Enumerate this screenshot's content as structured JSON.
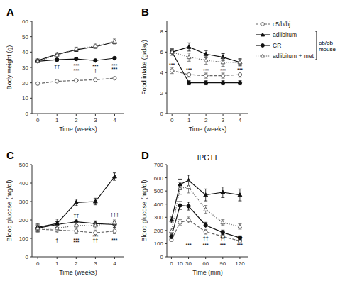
{
  "chart_data": [
    {
      "type": "line",
      "title": "A",
      "xlabel": "Time (weeks)",
      "ylabel": "Body weight (g)",
      "x": [
        0,
        1,
        2,
        3,
        4
      ],
      "xlim": [
        -0.3,
        4.5
      ],
      "ylim": [
        0,
        60
      ],
      "xticks": [
        0,
        1,
        2,
        3,
        4
      ],
      "yticks": [
        0,
        10,
        20,
        30,
        40,
        50,
        60
      ],
      "grid": false,
      "series": [
        {
          "name": "c5/b/bj",
          "color": "#666666",
          "marker": "circle-open",
          "line_style": "dashed",
          "values": [
            19.5,
            21.0,
            21.5,
            22.0,
            23.0
          ],
          "errors": [
            0.5,
            0.5,
            0.5,
            0.5,
            0.5
          ]
        },
        {
          "name": "adlibitum",
          "color": "#111111",
          "marker": "triangle",
          "line_style": "solid",
          "values": [
            34.5,
            38.5,
            41.5,
            43.5,
            46.5
          ],
          "errors": [
            1.0,
            1.0,
            1.0,
            1.0,
            1.2
          ]
        },
        {
          "name": "CR",
          "color": "#111111",
          "marker": "circle",
          "line_style": "solid",
          "values": [
            34.0,
            35.0,
            35.5,
            34.5,
            36.0
          ],
          "errors": [
            1.0,
            0.8,
            0.8,
            0.8,
            1.0
          ]
        },
        {
          "name": "adlibitum + met",
          "color": "#666666",
          "marker": "triangle-open",
          "line_style": "dotted",
          "values": [
            34.0,
            38.0,
            42.0,
            44.0,
            47.0
          ],
          "errors": [
            1.0,
            1.2,
            1.2,
            1.2,
            1.5
          ]
        }
      ],
      "annotations": [
        {
          "text": "††",
          "x": 1,
          "y": 29.5
        },
        {
          "text": "***",
          "x": 2,
          "y": 27.0
        },
        {
          "text": "***",
          "x": 2,
          "y": 29.8
        },
        {
          "text": "†",
          "x": 3,
          "y": 27.0
        },
        {
          "text": "***",
          "x": 3,
          "y": 29.5
        },
        {
          "text": "***",
          "x": 4,
          "y": 27.5
        },
        {
          "text": "***",
          "x": 4,
          "y": 29.8
        }
      ]
    },
    {
      "type": "line",
      "title": "B",
      "xlabel": "Time (weeks)",
      "ylabel": "Food intake (g/day)",
      "x": [
        0,
        1,
        2,
        3,
        4
      ],
      "xlim": [
        -0.3,
        4.5
      ],
      "ylim": [
        0,
        9
      ],
      "xticks": [
        0,
        1,
        2,
        3,
        4
      ],
      "yticks": [
        0,
        2,
        4,
        6,
        8
      ],
      "grid": false,
      "legend": "right",
      "legend_note": "ob/ob\nmouse",
      "series": [
        {
          "name": "c5/b/bj",
          "color": "#666666",
          "marker": "circle-open",
          "line_style": "dashed",
          "values": [
            4.2,
            3.8,
            3.7,
            3.7,
            3.8
          ],
          "errors": [
            0.3,
            0.25,
            0.25,
            0.25,
            0.25
          ]
        },
        {
          "name": "adlibitum",
          "color": "#111111",
          "marker": "triangle",
          "line_style": "solid",
          "values": [
            6.0,
            6.5,
            5.8,
            5.5,
            5.0
          ],
          "errors": [
            0.3,
            0.4,
            0.35,
            0.35,
            0.35
          ]
        },
        {
          "name": "CR",
          "color": "#111111",
          "marker": "circle",
          "line_style": "solid",
          "values": [
            6.0,
            3.0,
            3.0,
            3.0,
            3.0
          ],
          "errors": [
            0.3,
            0.2,
            0.2,
            0.2,
            0.2
          ]
        },
        {
          "name": "adlibitum + met",
          "color": "#666666",
          "marker": "triangle-open",
          "line_style": "dotted",
          "values": [
            6.0,
            5.5,
            5.2,
            5.0,
            5.0
          ],
          "errors": [
            0.3,
            0.4,
            0.4,
            0.4,
            0.3
          ]
        }
      ],
      "annotations": [
        {
          "text": "***",
          "x": 0,
          "y": 4.55
        },
        {
          "text": "***",
          "x": 1,
          "y": 4.1
        },
        {
          "text": "***",
          "x": 2,
          "y": 4.0
        },
        {
          "text": "***",
          "x": 3,
          "y": 4.0
        },
        {
          "text": "***",
          "x": 4,
          "y": 4.1
        }
      ]
    },
    {
      "type": "line",
      "title": "C",
      "xlabel": "Time (weeks)",
      "ylabel": "Blood glucose (mg/dl)",
      "x": [
        0,
        1,
        2,
        3,
        4
      ],
      "xlim": [
        -0.3,
        4.5
      ],
      "ylim": [
        0,
        500
      ],
      "xticks": [
        0,
        1,
        2,
        3,
        4
      ],
      "yticks": [
        0,
        100,
        200,
        300,
        400,
        500
      ],
      "grid": false,
      "series": [
        {
          "name": "c5/b/bj",
          "color": "#666666",
          "marker": "circle-open",
          "line_style": "dashed",
          "values": [
            150,
            145,
            140,
            130,
            140
          ],
          "errors": [
            18,
            15,
            15,
            15,
            15
          ]
        },
        {
          "name": "adlibitum",
          "color": "#111111",
          "marker": "triangle",
          "line_style": "solid",
          "values": [
            160,
            180,
            295,
            300,
            435
          ],
          "errors": [
            20,
            25,
            18,
            18,
            20
          ]
        },
        {
          "name": "CR",
          "color": "#111111",
          "marker": "circle",
          "line_style": "solid",
          "values": [
            155,
            175,
            190,
            180,
            175
          ],
          "errors": [
            18,
            15,
            15,
            15,
            15
          ]
        },
        {
          "name": "adlibitum + met",
          "color": "#666666",
          "marker": "triangle-open",
          "line_style": "dotted",
          "values": [
            155,
            155,
            170,
            170,
            185
          ],
          "errors": [
            18,
            15,
            15,
            15,
            15
          ]
        }
      ],
      "annotations": [
        {
          "text": "†",
          "x": 1,
          "y": 82
        },
        {
          "text": "††",
          "x": 2,
          "y": 215
        },
        {
          "text": "***",
          "x": 2,
          "y": 82
        },
        {
          "text": "***",
          "x": 2,
          "y": 68
        },
        {
          "text": "***",
          "x": 3,
          "y": 100
        },
        {
          "text": "††",
          "x": 3,
          "y": 82
        },
        {
          "text": "†††",
          "x": 4,
          "y": 220
        },
        {
          "text": "***",
          "x": 4,
          "y": 82
        }
      ]
    },
    {
      "type": "line",
      "title": "IPGTT",
      "panel_label": "D",
      "xlabel": "Time (min)",
      "ylabel": "Blood glucose (mg/dl)",
      "x": [
        0,
        15,
        30,
        60,
        90,
        120
      ],
      "xlim": [
        -8,
        135
      ],
      "ylim": [
        0,
        700
      ],
      "xticks": [
        0,
        15,
        30,
        60,
        90,
        120
      ],
      "yticks": [
        0,
        100,
        200,
        300,
        400,
        500,
        600,
        700
      ],
      "grid": false,
      "series": [
        {
          "name": "c5/b/bj",
          "color": "#666666",
          "marker": "circle-open",
          "line_style": "dashed",
          "values": [
            130,
            260,
            280,
            190,
            155,
            120
          ],
          "errors": [
            12,
            22,
            22,
            18,
            15,
            12
          ]
        },
        {
          "name": "adlibitum",
          "color": "#111111",
          "marker": "triangle",
          "line_style": "solid",
          "values": [
            280,
            550,
            580,
            470,
            490,
            470
          ],
          "errors": [
            22,
            40,
            40,
            45,
            40,
            45
          ]
        },
        {
          "name": "CR",
          "color": "#111111",
          "marker": "circle",
          "line_style": "solid",
          "values": [
            155,
            390,
            385,
            240,
            185,
            145
          ],
          "errors": [
            18,
            30,
            30,
            22,
            18,
            15
          ]
        },
        {
          "name": "adlibitum + met",
          "color": "#666666",
          "marker": "triangle-open",
          "line_style": "dotted",
          "values": [
            195,
            520,
            530,
            360,
            260,
            230
          ],
          "errors": [
            22,
            45,
            45,
            30,
            22,
            20
          ]
        }
      ],
      "annotations": [
        {
          "text": "***",
          "x": 30,
          "y": 75
        },
        {
          "text": "††",
          "x": 60,
          "y": 130
        },
        {
          "text": "***",
          "x": 60,
          "y": 75
        },
        {
          "text": "††",
          "x": 90,
          "y": 130
        },
        {
          "text": "***",
          "x": 90,
          "y": 75
        },
        {
          "text": "††",
          "x": 120,
          "y": 130
        },
        {
          "text": "***",
          "x": 120,
          "y": 75
        }
      ]
    }
  ]
}
